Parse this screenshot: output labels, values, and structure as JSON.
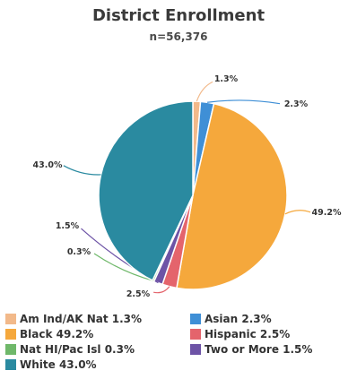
{
  "chart_data": {
    "type": "pie",
    "title": "District Enrollment",
    "subtitle": "n=56,376",
    "slices": [
      {
        "name": "Am Ind/AK Nat",
        "value": 1.3,
        "label": "1.3%",
        "legend": "Am Ind/AK Nat 1.3%",
        "color": "#f2b98a"
      },
      {
        "name": "Asian",
        "value": 2.3,
        "label": "2.3%",
        "legend": "Asian 2.3%",
        "color": "#3f8fd6"
      },
      {
        "name": "Black",
        "value": 49.2,
        "label": "49.2%",
        "legend": "Black 49.2%",
        "color": "#f5a83c"
      },
      {
        "name": "Hispanic",
        "value": 2.5,
        "label": "2.5%",
        "legend": "Hispanic 2.5%",
        "color": "#e4646c"
      },
      {
        "name": "Two or More",
        "value": 1.5,
        "label": "1.5%",
        "legend": "Two or More 1.5%",
        "color": "#6d53a6"
      },
      {
        "name": "Nat HI/Pac Isl",
        "value": 0.3,
        "label": "0.3%",
        "legend": "Nat HI/Pac Isl 0.3%",
        "color": "#6fb86a"
      },
      {
        "name": "White",
        "value": 43.0,
        "label": "43.0%",
        "legend": "White 43.0%",
        "color": "#2a8aa0"
      }
    ],
    "legend_position": "bottom"
  }
}
